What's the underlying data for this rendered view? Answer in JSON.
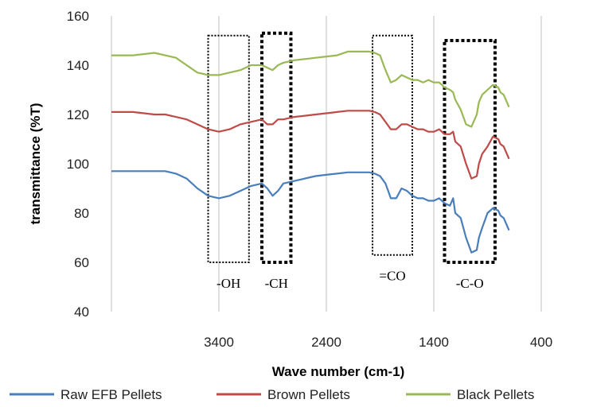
{
  "chart_data": {
    "type": "line",
    "xlabel": "Wave number (cm-1)",
    "ylabel": "transmittance (%T)",
    "xlim": [
      4400,
      400
    ],
    "ylim": [
      40,
      160
    ],
    "x_ticks": [
      "3400",
      "2400",
      "1400",
      "400"
    ],
    "y_ticks": [
      "40",
      "60",
      "80",
      "100",
      "120",
      "140",
      "160"
    ],
    "grid": "vertical",
    "legend_position": "bottom",
    "colors": {
      "raw": "#4a7ebb",
      "brown": "#be4b48",
      "black": "#98b954"
    },
    "series": [
      {
        "name": "Raw EFB Pellets",
        "x": [
          4400,
          4200,
          4000,
          3900,
          3800,
          3700,
          3600,
          3500,
          3400,
          3300,
          3200,
          3100,
          3000,
          2950,
          2900,
          2850,
          2800,
          2700,
          2600,
          2500,
          2400,
          2300,
          2200,
          2100,
          2000,
          1950,
          1900,
          1850,
          1800,
          1750,
          1700,
          1650,
          1600,
          1550,
          1500,
          1450,
          1400,
          1350,
          1300,
          1250,
          1220,
          1200,
          1150,
          1100,
          1050,
          1000,
          980,
          950,
          900,
          850,
          800,
          780,
          750,
          700
        ],
        "values": [
          97,
          97,
          97,
          97,
          96,
          94,
          90,
          87,
          86,
          87,
          89,
          91,
          92,
          90,
          87,
          89,
          92,
          93,
          94,
          95,
          95.5,
          96,
          96.5,
          96.5,
          96.5,
          96,
          95,
          92,
          86,
          86,
          90,
          89,
          87,
          86,
          86,
          85,
          85,
          86,
          84,
          83,
          86,
          80,
          78,
          70,
          64,
          65,
          70,
          74,
          80,
          82,
          81,
          79,
          78,
          73
        ]
      },
      {
        "name": "Brown Pellets",
        "x": [
          4400,
          4200,
          4000,
          3900,
          3800,
          3700,
          3600,
          3500,
          3400,
          3300,
          3200,
          3100,
          3000,
          2950,
          2900,
          2850,
          2800,
          2700,
          2600,
          2500,
          2400,
          2300,
          2200,
          2100,
          2000,
          1950,
          1900,
          1850,
          1800,
          1750,
          1700,
          1650,
          1600,
          1550,
          1500,
          1450,
          1400,
          1350,
          1300,
          1250,
          1220,
          1200,
          1150,
          1100,
          1050,
          1000,
          980,
          950,
          900,
          850,
          800,
          780,
          750,
          700
        ],
        "values": [
          121,
          121,
          120,
          120,
          119,
          118,
          116,
          114,
          113,
          114,
          116,
          117,
          118,
          116,
          116,
          118,
          118,
          119,
          119.5,
          120,
          120.5,
          121,
          121.5,
          121.5,
          121.5,
          121,
          120,
          117,
          114,
          114,
          116,
          116,
          115,
          114,
          114,
          113,
          113,
          114,
          112,
          112,
          113,
          109,
          107,
          100,
          94,
          95,
          100,
          104,
          107,
          111,
          110,
          108,
          107,
          102
        ]
      },
      {
        "name": "Black Pellets",
        "x": [
          4400,
          4200,
          4000,
          3900,
          3800,
          3700,
          3600,
          3500,
          3400,
          3300,
          3200,
          3100,
          3000,
          2950,
          2900,
          2850,
          2800,
          2700,
          2600,
          2500,
          2400,
          2300,
          2200,
          2100,
          2000,
          1950,
          1900,
          1850,
          1800,
          1750,
          1700,
          1650,
          1600,
          1550,
          1500,
          1450,
          1400,
          1350,
          1300,
          1250,
          1220,
          1200,
          1150,
          1100,
          1050,
          1000,
          980,
          950,
          900,
          850,
          800,
          780,
          750,
          700
        ],
        "values": [
          144,
          144,
          145,
          144,
          143,
          140,
          137,
          136,
          136,
          137,
          138,
          140,
          140,
          139,
          138,
          140,
          141,
          142,
          142.5,
          143,
          143.5,
          144,
          145.5,
          145.5,
          145.5,
          145,
          144,
          138,
          133,
          134,
          136,
          135,
          134,
          134,
          133,
          134,
          133,
          133,
          131,
          130,
          129,
          126,
          122,
          116,
          115,
          120,
          125,
          128,
          130,
          132,
          131,
          129,
          128,
          123
        ]
      }
    ],
    "regions": [
      {
        "label": "-OH",
        "x_start": 3500,
        "x_end": 3120,
        "y_top": 152,
        "y_bottom": 60,
        "style": "dotted"
      },
      {
        "label": "-CH",
        "x_start": 3000,
        "x_end": 2730,
        "y_top": 153,
        "y_bottom": 60,
        "style": "dashed-bold"
      },
      {
        "label": "=CO",
        "x_start": 1970,
        "x_end": 1600,
        "y_top": 152,
        "y_bottom": 63,
        "style": "dotted"
      },
      {
        "label": "-C-O",
        "x_start": 1300,
        "x_end": 830,
        "y_top": 150,
        "y_bottom": 60,
        "style": "dashed-bold"
      }
    ]
  }
}
